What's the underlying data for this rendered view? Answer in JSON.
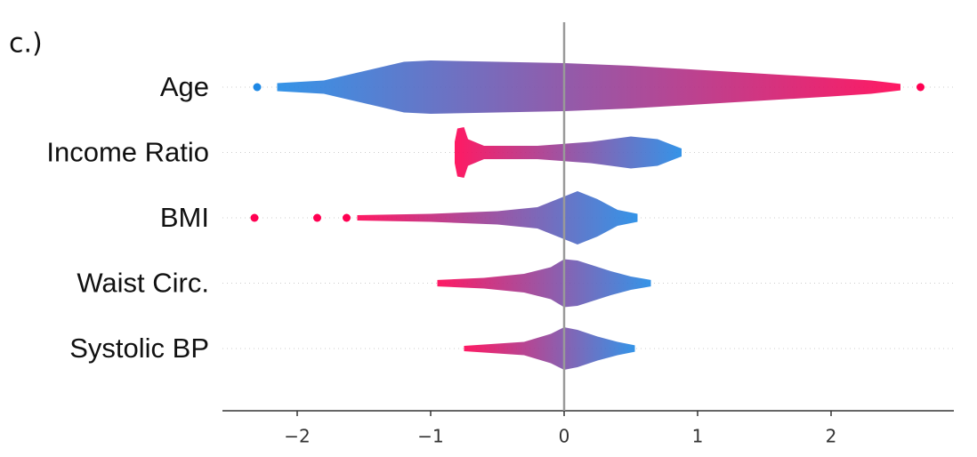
{
  "chart_data": {
    "type": "beeswarm",
    "title": "c.)",
    "xlim": [
      -2.56,
      2.92
    ],
    "xticks": [
      {
        "value": -2,
        "label": "−2"
      },
      {
        "value": -1,
        "label": "−1"
      },
      0,
      1,
      2
    ],
    "series": [
      {
        "name": "Age",
        "colors": [
          "#1e88e5",
          "#ff0052"
        ],
        "x": [
          -2.15,
          -1.8,
          -1.5,
          -1.2,
          -1,
          -0.5,
          0,
          0.5,
          1,
          1.5,
          2,
          2.3,
          2.52
        ],
        "spread": [
          0.15,
          0.25,
          0.6,
          0.95,
          1,
          0.95,
          0.9,
          0.8,
          0.65,
          0.5,
          0.35,
          0.25,
          0.12
        ],
        "outliers": [
          -2.3,
          2.67
        ]
      },
      {
        "name": "Income Ratio",
        "colors": [
          "#ff0052",
          "#1e88e5"
        ],
        "x": [
          -0.82,
          -0.8,
          -0.75,
          -0.72,
          -0.6,
          -0.2,
          0.2,
          0.5,
          0.7,
          0.88
        ],
        "spread": [
          0.4,
          0.9,
          0.95,
          0.5,
          0.25,
          0.25,
          0.4,
          0.6,
          0.5,
          0.15
        ],
        "outliers": []
      },
      {
        "name": "BMI",
        "colors": [
          "#ff0052",
          "#1e88e5"
        ],
        "x": [
          -1.55,
          -1.0,
          -0.5,
          -0.2,
          0,
          0.1,
          0.25,
          0.4,
          0.55
        ],
        "spread": [
          0.1,
          0.15,
          0.25,
          0.4,
          0.8,
          1,
          0.7,
          0.3,
          0.15
        ],
        "outliers": [
          -2.32,
          -1.85,
          -1.63
        ]
      },
      {
        "name": "Waist Circ.",
        "colors": [
          "#ff0052",
          "#1e88e5"
        ],
        "x": [
          -0.95,
          -0.6,
          -0.3,
          -0.1,
          0,
          0.1,
          0.35,
          0.5,
          0.65
        ],
        "spread": [
          0.12,
          0.2,
          0.35,
          0.6,
          0.9,
          0.85,
          0.45,
          0.25,
          0.12
        ],
        "outliers": []
      },
      {
        "name": "Systolic BP",
        "colors": [
          "#ff0052",
          "#1e88e5"
        ],
        "x": [
          -0.75,
          -0.6,
          -0.3,
          -0.1,
          0,
          0.1,
          0.25,
          0.4,
          0.53
        ],
        "spread": [
          0.1,
          0.15,
          0.25,
          0.55,
          0.8,
          0.7,
          0.45,
          0.25,
          0.12
        ],
        "outliers": []
      }
    ]
  }
}
